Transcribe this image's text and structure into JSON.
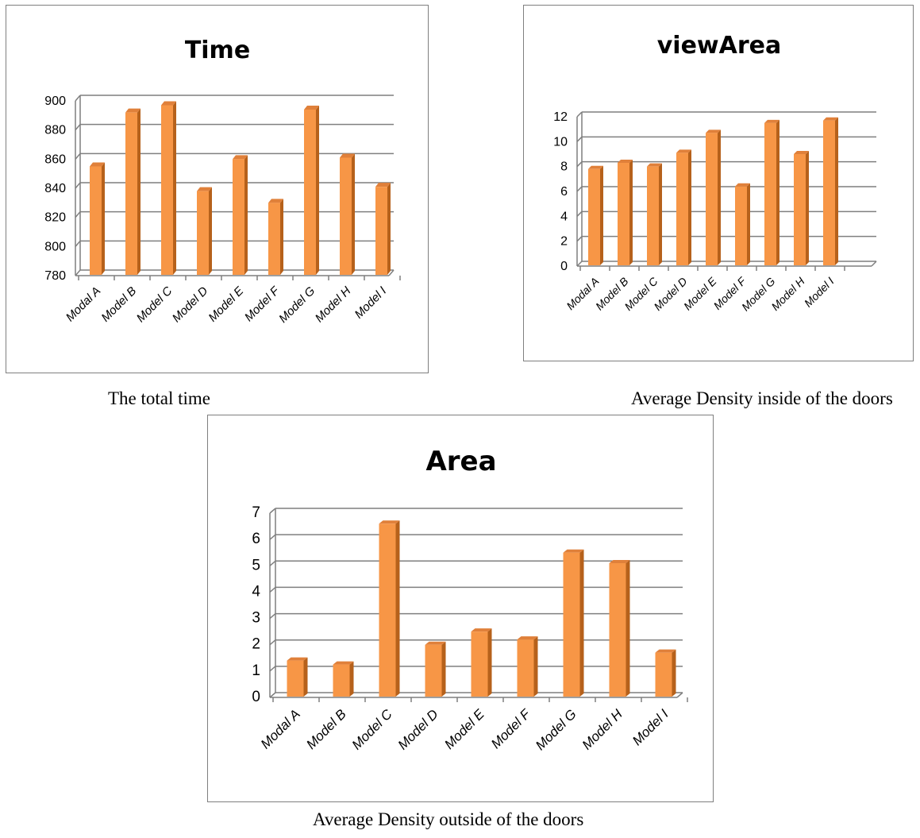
{
  "colors": {
    "bar_front": "#F79646",
    "bar_side": "#B6611B",
    "bar_top": "#E0803A",
    "grid": "#7f7f7f",
    "frame": "#7f7f7f"
  },
  "chart_data": [
    {
      "type": "bar",
      "title": "Time",
      "caption": "The total time",
      "categories": [
        "Modal A",
        "Model B",
        "Model C",
        "Model D",
        "Model E",
        "Model F",
        "Model G",
        "Model H",
        "Model I"
      ],
      "values": [
        855,
        892,
        897,
        838,
        860,
        830,
        894,
        861,
        841
      ],
      "ylim": [
        780,
        900
      ],
      "ticks": [
        "780",
        "800",
        "820",
        "840",
        "860",
        "880",
        "900"
      ],
      "grid": true,
      "legend": "none"
    },
    {
      "type": "bar",
      "title": "viewArea",
      "caption": "Average Density inside of the doors",
      "categories": [
        "Modal A",
        "Model B",
        "Model C",
        "Model D",
        "Model E",
        "Model F",
        "Model G",
        "Model H",
        "Model I"
      ],
      "values": [
        7.8,
        8.3,
        8.0,
        9.1,
        10.7,
        6.4,
        11.5,
        9.0,
        11.7
      ],
      "ylim": [
        0,
        12
      ],
      "ticks": [
        "0",
        "2",
        "4",
        "6",
        "8",
        "10",
        "12"
      ],
      "grid": true,
      "legend": "none"
    },
    {
      "type": "bar",
      "title": "Area",
      "caption": "Average Density outside of the doors",
      "categories": [
        "Modal A",
        "Model B",
        "Model C",
        "Model D",
        "Model E",
        "Model F",
        "Model G",
        "Model H",
        "Model I"
      ],
      "values": [
        1.4,
        1.25,
        6.6,
        2.0,
        2.5,
        2.2,
        5.5,
        5.1,
        1.7
      ],
      "ylim": [
        0,
        7
      ],
      "ticks": [
        "0",
        "1",
        "2",
        "3",
        "4",
        "5",
        "6",
        "7"
      ],
      "grid": true,
      "legend": "none"
    }
  ]
}
